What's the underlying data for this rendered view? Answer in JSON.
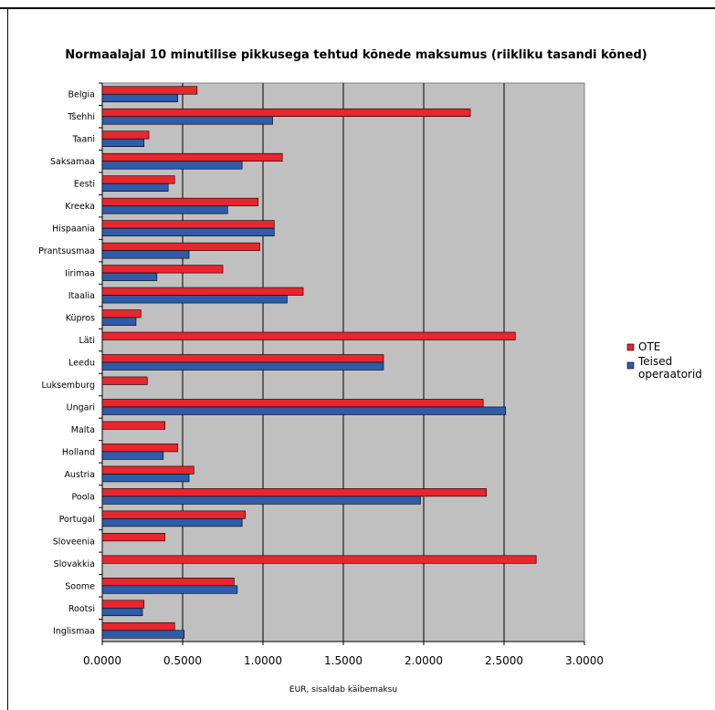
{
  "chart_data": {
    "type": "bar",
    "orientation": "horizontal",
    "title": "Normaalajal 10 minutilise pikkusega tehtud kõnede maksumus (riikliku tasandi kõned)",
    "xlabel": "EUR, sisaldab käibemaksu",
    "ylabel": "",
    "xlim": [
      0,
      3
    ],
    "x_ticks": [
      "0.0000",
      "0.5000",
      "1.0000",
      "1.5000",
      "2.0000",
      "2.5000",
      "3.0000"
    ],
    "grid": true,
    "legend_position": "right",
    "categories": [
      "Belgia",
      "Tšehhi",
      "Taani",
      "Saksamaa",
      "Eesti",
      "Kreeka",
      "Hispaania",
      "Prantsusmaa",
      "Iirimaa",
      "Itaalia",
      "Küpros",
      "Läti",
      "Leedu",
      "Luksemburg",
      "Ungari",
      "Malta",
      "Holland",
      "Austria",
      "Poola",
      "Portugal",
      "Sloveenia",
      "Slovakkia",
      "Soome",
      "Rootsi",
      "Inglismaa"
    ],
    "series": [
      {
        "name": "OTE",
        "color": "#e8262d",
        "values": [
          0.59,
          2.29,
          0.29,
          1.12,
          0.45,
          0.97,
          1.07,
          0.98,
          0.75,
          1.25,
          0.24,
          2.57,
          1.75,
          0.28,
          2.37,
          0.39,
          0.47,
          0.57,
          2.39,
          0.89,
          0.39,
          2.7,
          0.82,
          0.26,
          0.45
        ]
      },
      {
        "name": "Teised operaatorid",
        "color": "#2f5ba8",
        "values": [
          0.47,
          1.06,
          0.26,
          0.87,
          0.41,
          0.78,
          1.07,
          0.54,
          0.34,
          1.15,
          0.21,
          null,
          1.75,
          null,
          2.51,
          null,
          0.38,
          0.54,
          1.98,
          0.87,
          null,
          null,
          0.84,
          0.25,
          0.51
        ]
      }
    ],
    "plot_background": "#c0c0c0"
  }
}
